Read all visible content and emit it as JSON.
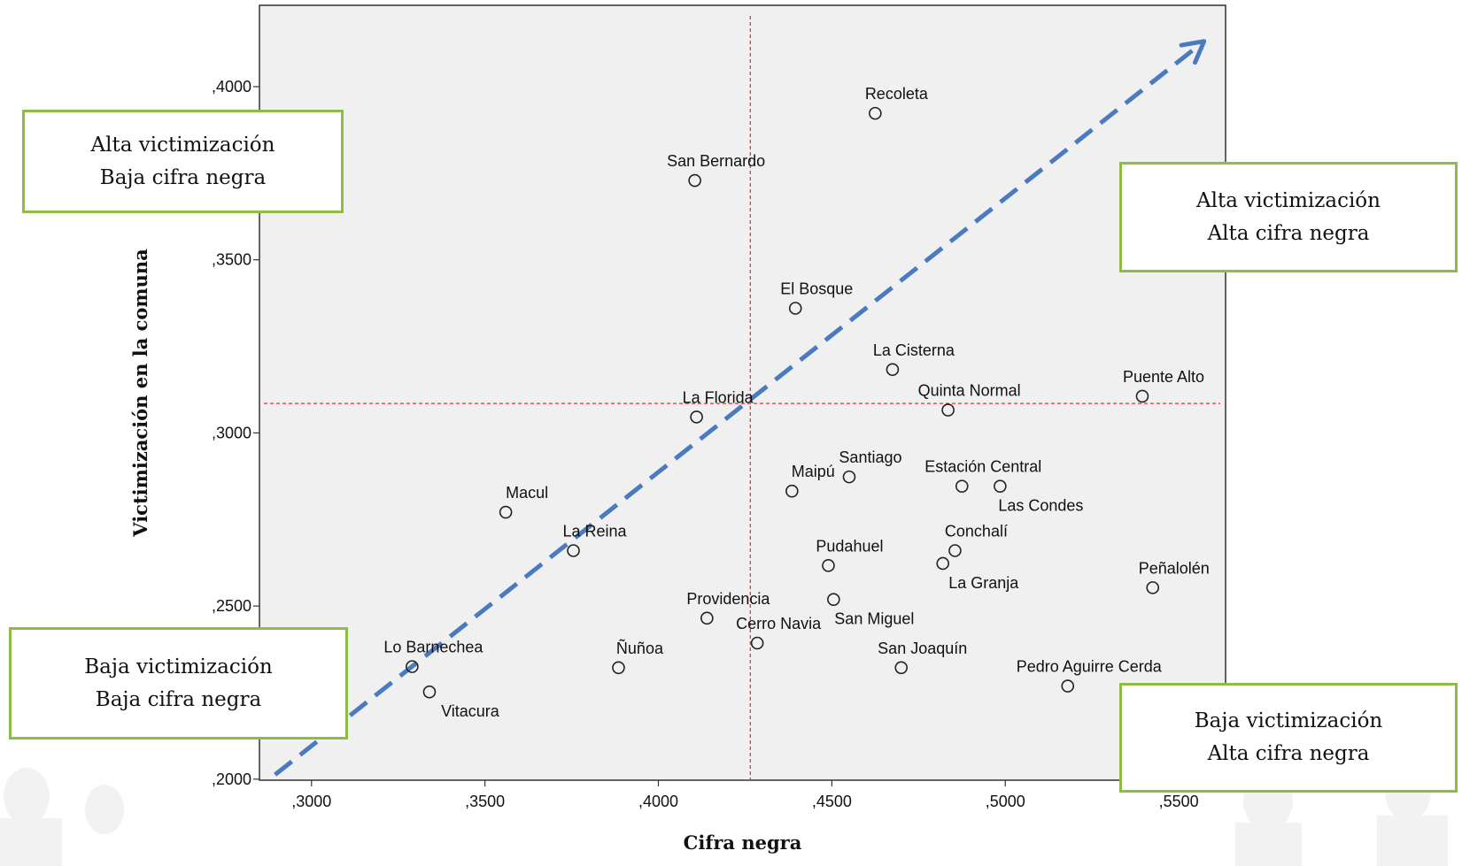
{
  "chart_data": {
    "type": "scatter",
    "xlabel": "Cifra negra",
    "ylabel": "Victimización en la comuna",
    "xlim": [
      0.285,
      0.5635
    ],
    "ylim": [
      0.1997,
      0.4235
    ],
    "xticks": [
      {
        "value": 0.3,
        "label": ",3000"
      },
      {
        "value": 0.35,
        "label": ",3500"
      },
      {
        "value": 0.4,
        "label": ",4000"
      },
      {
        "value": 0.45,
        "label": ",4500"
      },
      {
        "value": 0.5,
        "label": ",5000"
      },
      {
        "value": 0.55,
        "label": ",5500"
      }
    ],
    "yticks": [
      {
        "value": 0.2,
        "label": ",2000"
      },
      {
        "value": 0.25,
        "label": ",2500"
      },
      {
        "value": 0.3,
        "label": ",3000"
      },
      {
        "value": 0.35,
        "label": ",3500"
      },
      {
        "value": 0.4,
        "label": ",4000"
      }
    ],
    "reference_lines": {
      "x": 0.4265,
      "y": 0.3085,
      "color": "#e03030",
      "style": "dashed"
    },
    "trend_arrow": {
      "from": [
        0.2895,
        0.2013
      ],
      "to": [
        0.5573,
        0.4131
      ],
      "color": "#4a7abf"
    },
    "points": [
      {
        "name": "Recoleta",
        "x": 0.4625,
        "y": 0.3923,
        "label_pos": "above"
      },
      {
        "name": "San Bernardo",
        "x": 0.4105,
        "y": 0.3729,
        "label_pos": "above"
      },
      {
        "name": "El Bosque",
        "x": 0.4395,
        "y": 0.336,
        "label_pos": "above"
      },
      {
        "name": "La Cisterna",
        "x": 0.4675,
        "y": 0.3183,
        "label_pos": "above"
      },
      {
        "name": "Quinta Normal",
        "x": 0.4835,
        "y": 0.3066,
        "label_pos": "above"
      },
      {
        "name": "Puente Alto",
        "x": 0.5395,
        "y": 0.3106,
        "label_pos": "above"
      },
      {
        "name": "La Florida",
        "x": 0.411,
        "y": 0.3046,
        "label_pos": "above"
      },
      {
        "name": "Santiago",
        "x": 0.455,
        "y": 0.2873,
        "label_pos": "above"
      },
      {
        "name": "Maipú",
        "x": 0.4385,
        "y": 0.2832,
        "label_pos": "above"
      },
      {
        "name": "Estación Central",
        "x": 0.4875,
        "y": 0.2846,
        "label_pos": "above"
      },
      {
        "name": "Las Condes",
        "x": 0.4985,
        "y": 0.2846,
        "label_pos": "below"
      },
      {
        "name": "Macul",
        "x": 0.356,
        "y": 0.2771,
        "label_pos": "above"
      },
      {
        "name": "La Reina",
        "x": 0.3755,
        "y": 0.266,
        "label_pos": "above"
      },
      {
        "name": "Conchalí",
        "x": 0.4855,
        "y": 0.266,
        "label_pos": "above"
      },
      {
        "name": "La Granja",
        "x": 0.482,
        "y": 0.2623,
        "label_pos": "below"
      },
      {
        "name": "Pudahuel",
        "x": 0.449,
        "y": 0.2617,
        "label_pos": "above"
      },
      {
        "name": "Peñalolén",
        "x": 0.5425,
        "y": 0.2553,
        "label_pos": "above"
      },
      {
        "name": "San Miguel",
        "x": 0.4505,
        "y": 0.2519,
        "label_pos": "below"
      },
      {
        "name": "Providencia",
        "x": 0.414,
        "y": 0.2465,
        "label_pos": "above"
      },
      {
        "name": "Cerro Navia",
        "x": 0.4285,
        "y": 0.2393,
        "label_pos": "above"
      },
      {
        "name": "San Joaquín",
        "x": 0.47,
        "y": 0.2322,
        "label_pos": "above"
      },
      {
        "name": "Ñuñoa",
        "x": 0.3885,
        "y": 0.2322,
        "label_pos": "above"
      },
      {
        "name": "Lo Barnechea",
        "x": 0.329,
        "y": 0.2325,
        "label_pos": "above"
      },
      {
        "name": "Vitacura",
        "x": 0.334,
        "y": 0.2252,
        "label_pos": "below"
      },
      {
        "name": "Pedro Aguirre Cerda",
        "x": 0.518,
        "y": 0.2269,
        "label_pos": "above"
      }
    ]
  },
  "quadrants": {
    "top_left": {
      "line1": "Alta victimización",
      "line2": "Baja cifra negra"
    },
    "top_right": {
      "line1": "Alta victimización",
      "line2": "Alta cifra negra"
    },
    "bottom_left": {
      "line1": "Baja victimización",
      "line2": "Baja cifra negra"
    },
    "bottom_right": {
      "line1": "Baja victimización",
      "line2": "Alta cifra negra"
    }
  }
}
